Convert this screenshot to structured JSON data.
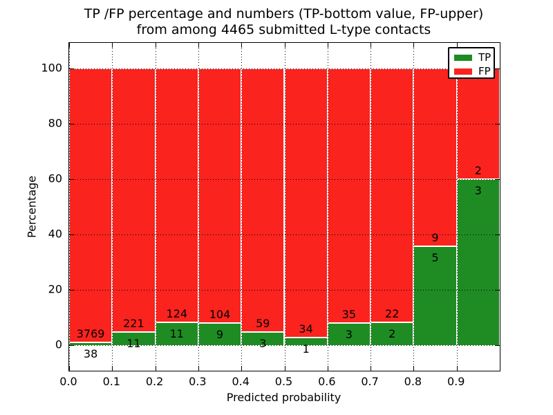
{
  "figure_title": {
    "line1": "TP /FP percentage and numbers (TP-bottom value, FP-upper)",
    "line2": "from among 4465 submitted L-type contacts"
  },
  "chart_data": {
    "type": "bar",
    "variant": "stacked-100-percent",
    "title": "TP /FP percentage and numbers (TP-bottom value, FP-upper) from among 4465 submitted L-type contacts",
    "xlabel": "Predicted probability",
    "ylabel": "Percentage",
    "total_submitted_contacts": 4465,
    "categories": [
      "0.0-0.1",
      "0.1-0.2",
      "0.2-0.3",
      "0.3-0.4",
      "0.4-0.5",
      "0.5-0.6",
      "0.6-0.7",
      "0.7-0.8",
      "0.8-0.9",
      "0.9-1.0"
    ],
    "series": [
      {
        "name": "TP",
        "color": "#1e8c23",
        "values": [
          38,
          11,
          11,
          9,
          3,
          1,
          3,
          2,
          5,
          3
        ]
      },
      {
        "name": "FP",
        "color": "#fa231e",
        "values": [
          3769,
          221,
          124,
          104,
          59,
          34,
          35,
          22,
          9,
          2
        ]
      }
    ],
    "tp_percent_per_bin": [
      1.0,
      4.7,
      8.1,
      8.0,
      4.8,
      2.9,
      7.9,
      8.3,
      35.7,
      60.0
    ],
    "x_tick_labels": [
      "0.0",
      "0.1",
      "0.2",
      "0.3",
      "0.4",
      "0.5",
      "0.6",
      "0.7",
      "0.8",
      "0.9"
    ],
    "y_tick_values": [
      0,
      20,
      40,
      60,
      80,
      100
    ],
    "xlim": [
      0.0,
      1.0
    ],
    "ylim_percent": [
      -9,
      109
    ],
    "grid": "dotted",
    "bar_edge_color": "#ffffff",
    "legend": {
      "position": "upper-right",
      "entries": [
        {
          "label": "TP",
          "color": "#1e8c23"
        },
        {
          "label": "FP",
          "color": "#fa231e"
        }
      ]
    }
  }
}
